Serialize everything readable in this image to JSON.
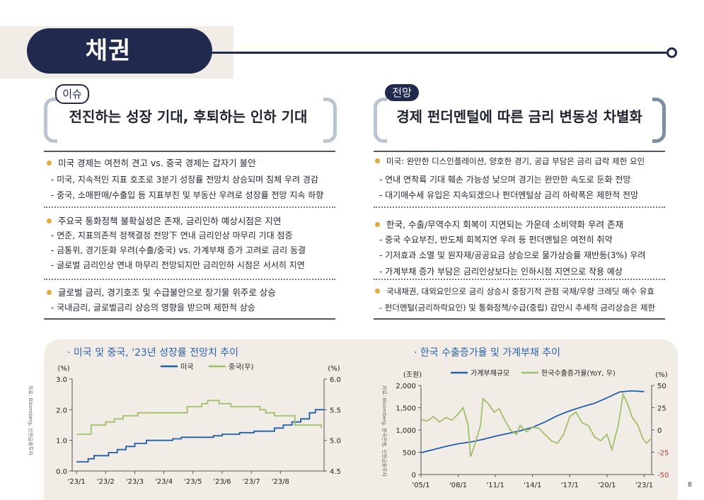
{
  "page": {
    "title": "채권",
    "page_number": "8"
  },
  "left": {
    "badge": "이슈",
    "heading": "전진하는 성장 기대, 후퇴하는 인하 기대",
    "groups": [
      {
        "bullet": "미국 경제는 여전히 견고 vs. 중국 경제는 갑자기 불안",
        "subs": [
          "- 미국, 지속적인 지표 호조로 3분기 성장률 전망치 상승되며 침체 우려 경감",
          "- 중국, 소매판매/수출입 등 지표부진 및 부동산 우려로 성장률 전망 지속 하향"
        ]
      },
      {
        "bullet": "주요국 통화정책 불확실성은 존재, 금리인하 예상시점은 지연",
        "subs": [
          "- 연준, 지표의존적 정책결정 전망下 연내 금리인상 마무리 기대 점증",
          "- 금통위, 경기둔화 우려(수출/중국) vs. 가계부채 증가 고려로 금리 동결",
          "- 글로벌 금리인상 연내 마무리 전망되지만 금리인하 시점은 서서히 지연"
        ]
      },
      {
        "bullet": "글로벌 금리, 경기호조 및 수급불안으로 장기물 위주로 상승",
        "subs": [
          "- 국내금리, 글로벌금리 상승의 영향을 받으며 제한적 상승"
        ]
      }
    ]
  },
  "right": {
    "badge": "전망",
    "heading": "경제 펀더멘털에 따른 금리 변동성 차별화",
    "groups": [
      {
        "bullet": "미국: 완만한 디스인플레이션, 양호한 경기, 공급 부담은 금리 급락 제한 요인",
        "subs": [
          "- 연내 연착륙 기대 훼손 가능성 낮으며 경기는 완만한 속도로 둔화 전망",
          "- 대기매수세 유입은 지속되겠으나 펀더멘털상 금리 하락폭은 제한적 전망"
        ]
      },
      {
        "bullet": "한국, 수출/무역수지 회복이 지연되는 가운데 소비약화 우려 존재",
        "subs": [
          "- 중국 수요부진, 반도체 회복지연 우려 등 펀더멘털은 여전히 취약",
          "- 기저효과 소멸 및 원자재/공공요금 상승으로 물가상승률 재반등(3%) 우려",
          "- 가계부채 증가 부담은 금리인상보다는 인하시점 지연으로 작용 예상"
        ]
      },
      {
        "bullet": "국내채권, 대외요인으로 금리 상승시 중장기적 관점 국채/우량 크레딧 매수 유효",
        "subs": [
          "- 펀더멘털(금리하락요인) 및 통화정책/수급(중립) 감안시 추세적 금리상승은 제한"
        ]
      }
    ]
  },
  "chart_data": [
    {
      "type": "line",
      "title": "· 미국 및 중국, '23년 성장률 전망치 추이",
      "source": "자료: Bloomberg, 신한금융투자",
      "left_axis_unit": "(%)",
      "right_axis_unit": "(%)",
      "y_left": {
        "min": 0.0,
        "max": 3.0,
        "ticks": [
          "0.0",
          "1.0",
          "2.0",
          "3.0"
        ]
      },
      "y_right": {
        "min": 4.5,
        "max": 6.0,
        "ticks": [
          "4.5",
          "5.0",
          "5.5",
          "6.0"
        ]
      },
      "x_ticks": [
        "'23/1",
        "'23/2",
        "'23/3",
        "'23/4",
        "'23/5",
        "'23/6",
        "'23/7",
        "'23/8"
      ],
      "legend_position": "top-center",
      "series": [
        {
          "name": "미국",
          "axis": "left",
          "color": "#1f5faa",
          "points": [
            [
              0,
              0.3
            ],
            [
              0.4,
              0.4
            ],
            [
              0.6,
              0.5
            ],
            [
              1.1,
              0.6
            ],
            [
              1.4,
              0.7
            ],
            [
              1.7,
              0.8
            ],
            [
              2.0,
              0.9
            ],
            [
              2.4,
              1.0
            ],
            [
              3.3,
              1.05
            ],
            [
              3.6,
              1.1
            ],
            [
              4.3,
              1.1
            ],
            [
              4.7,
              1.15
            ],
            [
              5.0,
              1.2
            ],
            [
              5.6,
              1.25
            ],
            [
              6.1,
              1.3
            ],
            [
              6.8,
              1.4
            ],
            [
              7.1,
              1.5
            ],
            [
              7.4,
              1.6
            ],
            [
              7.7,
              1.7
            ],
            [
              8.0,
              1.9
            ],
            [
              8.2,
              2.0
            ],
            [
              8.5,
              2.0
            ]
          ]
        },
        {
          "name": "중국(우)",
          "axis": "right",
          "color": "#9fc06a",
          "points": [
            [
              0,
              5.1
            ],
            [
              0.4,
              5.1
            ],
            [
              0.5,
              5.25
            ],
            [
              1.0,
              5.3
            ],
            [
              1.3,
              5.35
            ],
            [
              1.6,
              5.4
            ],
            [
              2.1,
              5.45
            ],
            [
              2.5,
              5.45
            ],
            [
              3.4,
              5.45
            ],
            [
              3.8,
              5.55
            ],
            [
              4.3,
              5.6
            ],
            [
              4.5,
              5.65
            ],
            [
              4.9,
              5.6
            ],
            [
              5.3,
              5.55
            ],
            [
              6.3,
              5.5
            ],
            [
              6.5,
              5.45
            ],
            [
              6.8,
              5.4
            ],
            [
              7.5,
              5.25
            ],
            [
              8.2,
              5.25
            ],
            [
              8.4,
              5.2
            ]
          ]
        }
      ]
    },
    {
      "type": "line",
      "title": "· 한국 수출증가율 및 가계부채 추이",
      "source": "자료: Bloomberg, 한국은행, 신한금융투자",
      "left_axis_unit": "(조원)",
      "right_axis_unit": "(%)",
      "y_left": {
        "min": 0,
        "max": 2000,
        "ticks": [
          "0",
          "500",
          "1,000",
          "1,500",
          "2,000"
        ]
      },
      "y_right": {
        "min": -50,
        "max": 50,
        "ticks": [
          "-50",
          "-25",
          "0",
          "25",
          "50"
        ]
      },
      "x_ticks": [
        "'05/1",
        "'08/1",
        "'11/1",
        "'14/1",
        "'17/1",
        "'20/1",
        "'23/1"
      ],
      "legend_position": "top-center",
      "series": [
        {
          "name": "가계부채규모",
          "axis": "left",
          "color": "#1f5faa",
          "points": [
            [
              2005,
              490
            ],
            [
              2006,
              560
            ],
            [
              2007,
              630
            ],
            [
              2008,
              690
            ],
            [
              2009,
              730
            ],
            [
              2010,
              790
            ],
            [
              2011,
              860
            ],
            [
              2012,
              920
            ],
            [
              2013,
              980
            ],
            [
              2014,
              1060
            ],
            [
              2015,
              1180
            ],
            [
              2016,
              1320
            ],
            [
              2017,
              1430
            ],
            [
              2018,
              1520
            ],
            [
              2019,
              1600
            ],
            [
              2020,
              1720
            ],
            [
              2021,
              1850
            ],
            [
              2022,
              1880
            ],
            [
              2023,
              1860
            ]
          ]
        },
        {
          "name": "한국수출증가율(YoY, 우)",
          "axis": "right",
          "color": "#9fc06a",
          "points": [
            [
              2005,
              12
            ],
            [
              2005.5,
              10
            ],
            [
              2006,
              15
            ],
            [
              2006.5,
              9
            ],
            [
              2007,
              14
            ],
            [
              2007.5,
              11
            ],
            [
              2008,
              18
            ],
            [
              2008.4,
              25
            ],
            [
              2008.8,
              5
            ],
            [
              2009,
              -30
            ],
            [
              2009.3,
              -18
            ],
            [
              2009.8,
              5
            ],
            [
              2010,
              35
            ],
            [
              2010.4,
              30
            ],
            [
              2010.9,
              20
            ],
            [
              2011.3,
              24
            ],
            [
              2011.8,
              10
            ],
            [
              2012.2,
              0
            ],
            [
              2012.7,
              -5
            ],
            [
              2013,
              5
            ],
            [
              2013.5,
              -2
            ],
            [
              2014,
              3
            ],
            [
              2014.5,
              2
            ],
            [
              2015,
              -5
            ],
            [
              2015.5,
              -12
            ],
            [
              2016,
              -15
            ],
            [
              2016.5,
              -5
            ],
            [
              2017,
              15
            ],
            [
              2017.5,
              20
            ],
            [
              2018,
              8
            ],
            [
              2018.5,
              5
            ],
            [
              2019,
              -8
            ],
            [
              2019.5,
              -12
            ],
            [
              2020,
              -5
            ],
            [
              2020.4,
              -22
            ],
            [
              2020.9,
              5
            ],
            [
              2021.3,
              40
            ],
            [
              2021.7,
              28
            ],
            [
              2022,
              15
            ],
            [
              2022.5,
              5
            ],
            [
              2022.9,
              -10
            ],
            [
              2023.2,
              -15
            ],
            [
              2023.5,
              -10
            ]
          ]
        }
      ]
    }
  ]
}
